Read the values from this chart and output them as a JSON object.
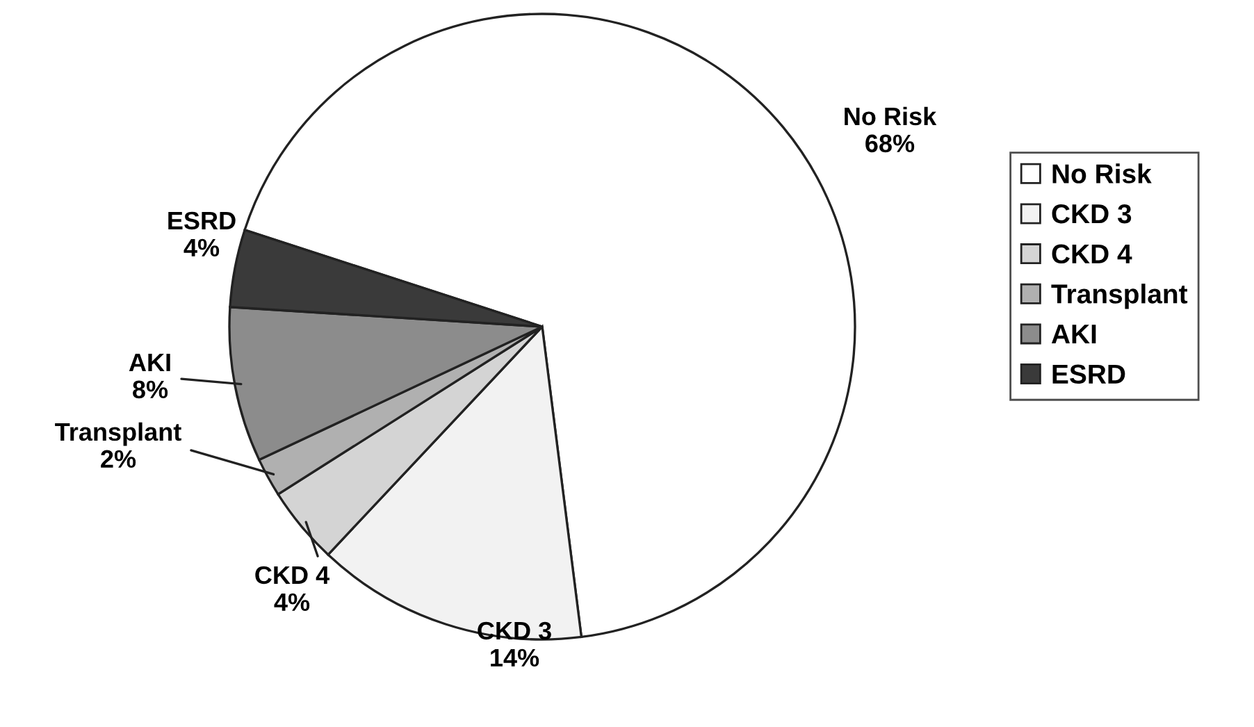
{
  "chart_data": {
    "type": "pie",
    "categories": [
      "No Risk",
      "CKD 3",
      "CKD 4",
      "Transplant",
      "AKI",
      "ESRD"
    ],
    "values": [
      68,
      14,
      4,
      2,
      8,
      4
    ],
    "value_labels": [
      "68%",
      "14%",
      "4%",
      "2%",
      "8%",
      "4%"
    ],
    "colors": [
      "#ffffff",
      "#f2f2f2",
      "#d4d4d4",
      "#b0b0b0",
      "#8c8c8c",
      "#3a3a3a"
    ],
    "legend": "right"
  }
}
